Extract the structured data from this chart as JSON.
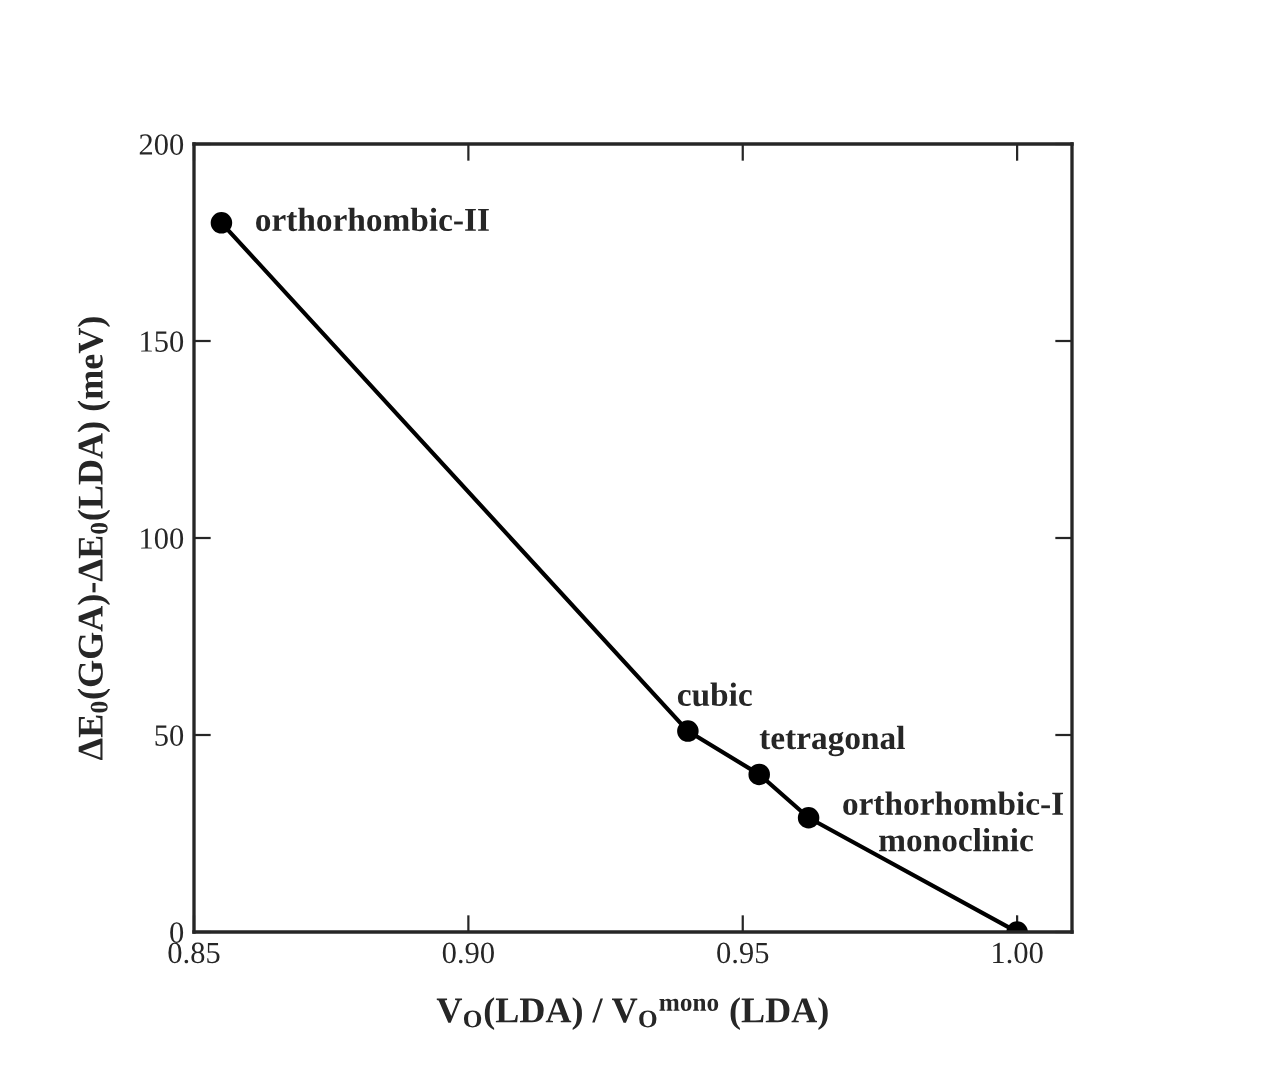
{
  "chart_data": {
    "type": "line",
    "xlabel": "V$_{O}$(LDA) / V$_{O}$$^{mono}$ (LDA)",
    "ylabel": "ΔE$_{0}$(GGA)-ΔE$_{0}$(LDA) (meV)",
    "x": [
      0.855,
      0.94,
      0.953,
      0.962,
      1.0
    ],
    "series": [
      {
        "color": "#000000",
        "values": [
          180,
          51,
          40,
          29,
          0
        ]
      }
    ],
    "xlim": [
      0.85,
      1.01
    ],
    "xticks": [
      {
        "value": 0.85,
        "label": "0.85"
      },
      {
        "value": 0.9,
        "label": "0.90"
      },
      {
        "value": 0.95,
        "label": "0.95"
      },
      {
        "value": 1.0,
        "label": "1.00"
      }
    ],
    "ylim": [
      0,
      200
    ],
    "yticks": [
      0,
      50,
      100,
      150,
      200
    ],
    "marker": "circle",
    "line_style": "solid",
    "grid": false,
    "annotations": [
      {
        "text": "orthorhombic-II",
        "x": 0.855,
        "y": 180
      },
      {
        "text": "cubic",
        "x": 0.94,
        "y": 51
      },
      {
        "text": "tetragonal",
        "x": 0.953,
        "y": 40
      },
      {
        "text": "orthorhombic-I",
        "x": 0.962,
        "y": 29
      },
      {
        "text": "monoclinic",
        "x": 1.0,
        "y": 0
      }
    ]
  }
}
